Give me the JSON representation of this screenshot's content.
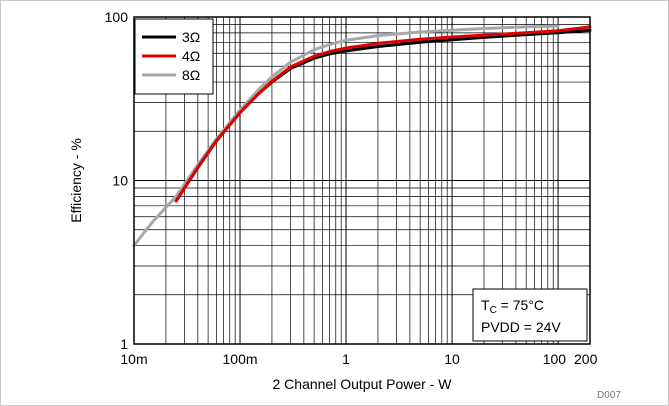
{
  "chart_data": {
    "type": "line",
    "xlabel": "2 Channel Output Power - W",
    "ylabel": "Efficiency - %",
    "xscale": "log",
    "yscale": "log",
    "xlim": [
      0.01,
      200
    ],
    "ylim": [
      1,
      100
    ],
    "x_ticks": [
      {
        "value": 0.01,
        "label": "10m"
      },
      {
        "value": 0.1,
        "label": "100m"
      },
      {
        "value": 1,
        "label": "1"
      },
      {
        "value": 10,
        "label": "10"
      },
      {
        "value": 100,
        "label": "100"
      },
      {
        "value": 200,
        "label": "200"
      }
    ],
    "y_ticks": [
      {
        "value": 1,
        "label": "1"
      },
      {
        "value": 10,
        "label": "10"
      },
      {
        "value": 100,
        "label": "100"
      }
    ],
    "grid": true,
    "legend_position": "top-left",
    "series": [
      {
        "name": "3Ω",
        "color": "#000000",
        "x": [
          0.025,
          0.04,
          0.06,
          0.1,
          0.15,
          0.2,
          0.3,
          0.5,
          0.7,
          1,
          2,
          5,
          10,
          20,
          50,
          100,
          200
        ],
        "y": [
          7.5,
          12,
          17.5,
          26,
          34,
          40,
          48.5,
          56,
          59.5,
          62,
          66,
          70,
          72.5,
          75,
          78,
          80,
          83
        ]
      },
      {
        "name": "4Ω",
        "color": "#e00000",
        "x": [
          0.025,
          0.04,
          0.06,
          0.1,
          0.15,
          0.2,
          0.3,
          0.5,
          0.7,
          1,
          2,
          5,
          10,
          20,
          50,
          100,
          200
        ],
        "y": [
          7.5,
          12,
          17.5,
          26,
          34,
          40.5,
          49.5,
          57.5,
          61.5,
          64.5,
          69,
          73,
          75.5,
          77.5,
          80,
          82.5,
          87
        ]
      },
      {
        "name": "8Ω",
        "color": "#a8a8a8",
        "x": [
          0.01,
          0.015,
          0.025,
          0.04,
          0.06,
          0.1,
          0.15,
          0.2,
          0.3,
          0.5,
          0.7,
          1,
          2,
          5,
          10,
          20,
          50,
          100
        ],
        "y": [
          4.0,
          5.6,
          8.0,
          12.5,
          18,
          27,
          36,
          43,
          53,
          63,
          68,
          72,
          77,
          81,
          83,
          85,
          87,
          88
        ]
      }
    ],
    "annotation": {
      "line1_main": "T",
      "line1_sub": "C",
      "line1_rest": " = 75°C",
      "line2": "PVDD = 24V"
    },
    "figure_code": "D007"
  }
}
